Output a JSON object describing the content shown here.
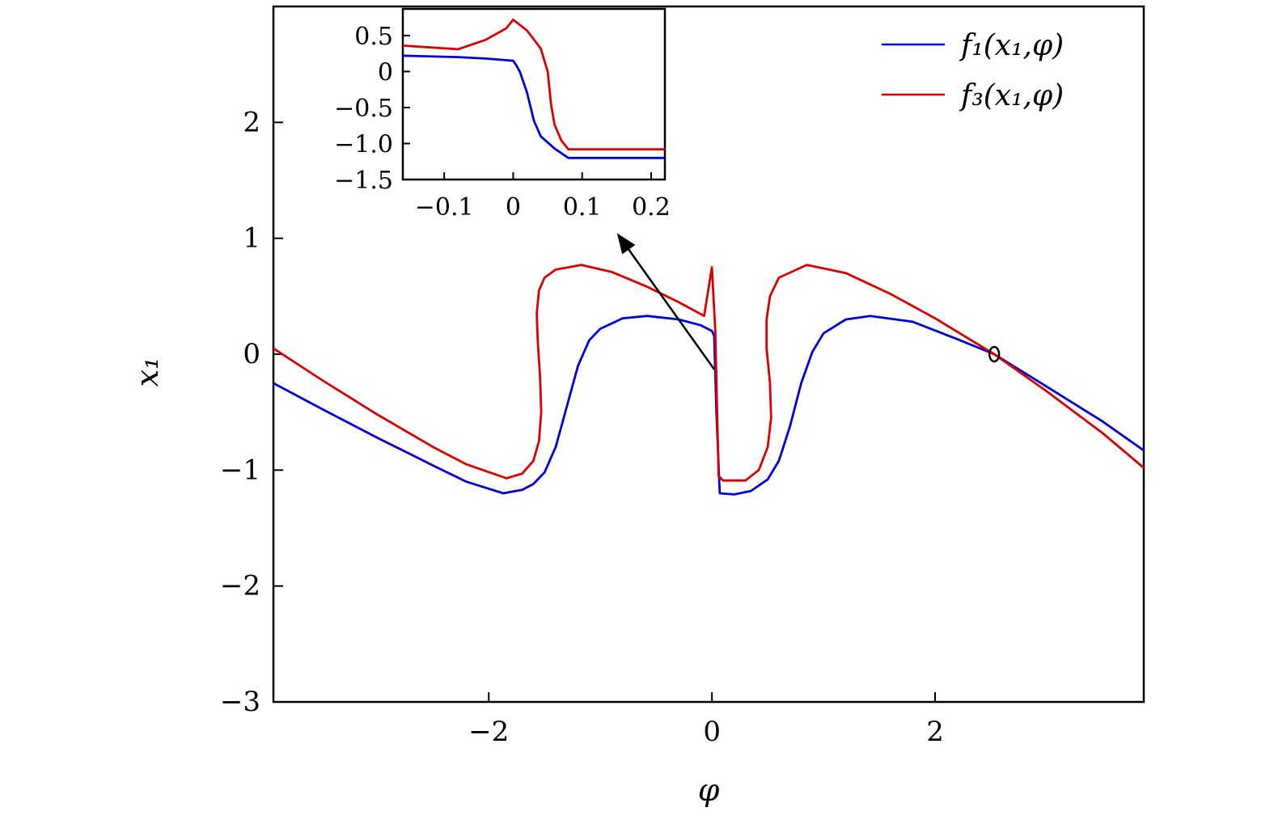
{
  "chart_data": [
    {
      "panel": "main",
      "type": "line",
      "xlabel": "φ",
      "ylabel": "x₁",
      "xlim": [
        -3.93,
        3.87
      ],
      "ylim": [
        -3,
        3
      ],
      "xticks": [
        -2,
        0,
        2
      ],
      "xtick_labels": [
        "−2",
        "0",
        "2"
      ],
      "yticks": [
        -3,
        -2,
        -1,
        0,
        1,
        2
      ],
      "ytick_labels": [
        "−3",
        "−2",
        "−1",
        "0",
        "1",
        "2"
      ],
      "grid": false,
      "legend_position": "top-right",
      "series": [
        {
          "name": "f₁(x₁,φ)",
          "color": "#0000dd",
          "points": [
            [
              -3.93,
              -0.25
            ],
            [
              -3.5,
              -0.47
            ],
            [
              -3,
              -0.72
            ],
            [
              -2.5,
              -0.96
            ],
            [
              -2.2,
              -1.1
            ],
            [
              -1.87,
              -1.2
            ],
            [
              -1.7,
              -1.17
            ],
            [
              -1.6,
              -1.12
            ],
            [
              -1.5,
              -1.02
            ],
            [
              -1.4,
              -0.8
            ],
            [
              -1.3,
              -0.45
            ],
            [
              -1.2,
              -0.1
            ],
            [
              -1.1,
              0.12
            ],
            [
              -1.0,
              0.22
            ],
            [
              -0.8,
              0.31
            ],
            [
              -0.58,
              0.33
            ],
            [
              -0.3,
              0.3
            ],
            [
              -0.1,
              0.25
            ],
            [
              0.0,
              0.2
            ],
            [
              0.02,
              0.16
            ],
            [
              0.04,
              -0.5
            ],
            [
              0.07,
              -1.2
            ],
            [
              0.2,
              -1.21
            ],
            [
              0.35,
              -1.18
            ],
            [
              0.5,
              -1.08
            ],
            [
              0.6,
              -0.92
            ],
            [
              0.7,
              -0.62
            ],
            [
              0.8,
              -0.25
            ],
            [
              0.9,
              0.02
            ],
            [
              1.0,
              0.18
            ],
            [
              1.2,
              0.3
            ],
            [
              1.42,
              0.33
            ],
            [
              1.8,
              0.28
            ],
            [
              2.2,
              0.13
            ],
            [
              2.53,
              0
            ],
            [
              3.0,
              -0.28
            ],
            [
              3.5,
              -0.58
            ],
            [
              3.87,
              -0.83
            ]
          ]
        },
        {
          "name": "f₃(x₁,φ)",
          "color": "#dd0000",
          "points": [
            [
              -3.93,
              0.05
            ],
            [
              -3.5,
              -0.22
            ],
            [
              -3,
              -0.52
            ],
            [
              -2.5,
              -0.8
            ],
            [
              -2.2,
              -0.95
            ],
            [
              -1.84,
              -1.07
            ],
            [
              -1.7,
              -1.03
            ],
            [
              -1.6,
              -0.92
            ],
            [
              -1.55,
              -0.75
            ],
            [
              -1.53,
              -0.5
            ],
            [
              -1.54,
              -0.2
            ],
            [
              -1.56,
              0.1
            ],
            [
              -1.57,
              0.35
            ],
            [
              -1.55,
              0.55
            ],
            [
              -1.5,
              0.66
            ],
            [
              -1.4,
              0.73
            ],
            [
              -1.17,
              0.77
            ],
            [
              -0.9,
              0.71
            ],
            [
              -0.6,
              0.59
            ],
            [
              -0.3,
              0.45
            ],
            [
              -0.07,
              0.33
            ],
            [
              0.0,
              0.75
            ],
            [
              0.03,
              0.2
            ],
            [
              0.06,
              -1.05
            ],
            [
              0.1,
              -1.09
            ],
            [
              0.3,
              -1.09
            ],
            [
              0.42,
              -1.0
            ],
            [
              0.5,
              -0.8
            ],
            [
              0.53,
              -0.55
            ],
            [
              0.52,
              -0.25
            ],
            [
              0.49,
              0.05
            ],
            [
              0.49,
              0.3
            ],
            [
              0.52,
              0.5
            ],
            [
              0.6,
              0.66
            ],
            [
              0.85,
              0.77
            ],
            [
              1.2,
              0.7
            ],
            [
              1.6,
              0.52
            ],
            [
              2.0,
              0.31
            ],
            [
              2.53,
              0
            ],
            [
              3.0,
              -0.32
            ],
            [
              3.5,
              -0.68
            ],
            [
              3.87,
              -0.98
            ]
          ]
        }
      ],
      "annotations": {
        "arrow": {
          "from": [
            0.02,
            -0.13
          ],
          "to": [
            -0.84,
            1.03
          ],
          "color": "#000000"
        },
        "marker_circle": {
          "at": [
            2.53,
            0
          ],
          "color": "#000000"
        }
      }
    },
    {
      "panel": "inset",
      "type": "line",
      "xlim": [
        -0.16,
        0.22
      ],
      "ylim": [
        -1.5,
        0.87
      ],
      "xticks": [
        -0.1,
        0,
        0.1,
        0.2
      ],
      "xtick_labels": [
        "−0.1",
        "0",
        "0.1",
        "0.2"
      ],
      "yticks": [
        0.5,
        0,
        -0.5,
        -1.0,
        -1.5
      ],
      "ytick_labels": [
        "0.5",
        "0",
        "−0.5",
        "−1.0",
        "−1.5"
      ],
      "grid": false,
      "series": [
        {
          "color": "#0000dd",
          "points": [
            [
              -0.16,
              0.22
            ],
            [
              -0.08,
              0.2
            ],
            [
              -0.04,
              0.18
            ],
            [
              0.0,
              0.15
            ],
            [
              0.005,
              0.08
            ],
            [
              0.01,
              -0.01
            ],
            [
              0.02,
              -0.29
            ],
            [
              0.03,
              -0.68
            ],
            [
              0.04,
              -0.9
            ],
            [
              0.06,
              -1.07
            ],
            [
              0.08,
              -1.2
            ],
            [
              0.15,
              -1.2
            ],
            [
              0.22,
              -1.2
            ]
          ]
        },
        {
          "color": "#dd0000",
          "points": [
            [
              -0.16,
              0.36
            ],
            [
              -0.08,
              0.31
            ],
            [
              -0.04,
              0.44
            ],
            [
              -0.01,
              0.6
            ],
            [
              0.0,
              0.72
            ],
            [
              0.02,
              0.57
            ],
            [
              0.04,
              0.32
            ],
            [
              0.05,
              0
            ],
            [
              0.055,
              -0.46
            ],
            [
              0.06,
              -0.74
            ],
            [
              0.07,
              -0.96
            ],
            [
              0.08,
              -1.08
            ],
            [
              0.15,
              -1.08
            ],
            [
              0.22,
              -1.08
            ]
          ]
        }
      ]
    }
  ]
}
